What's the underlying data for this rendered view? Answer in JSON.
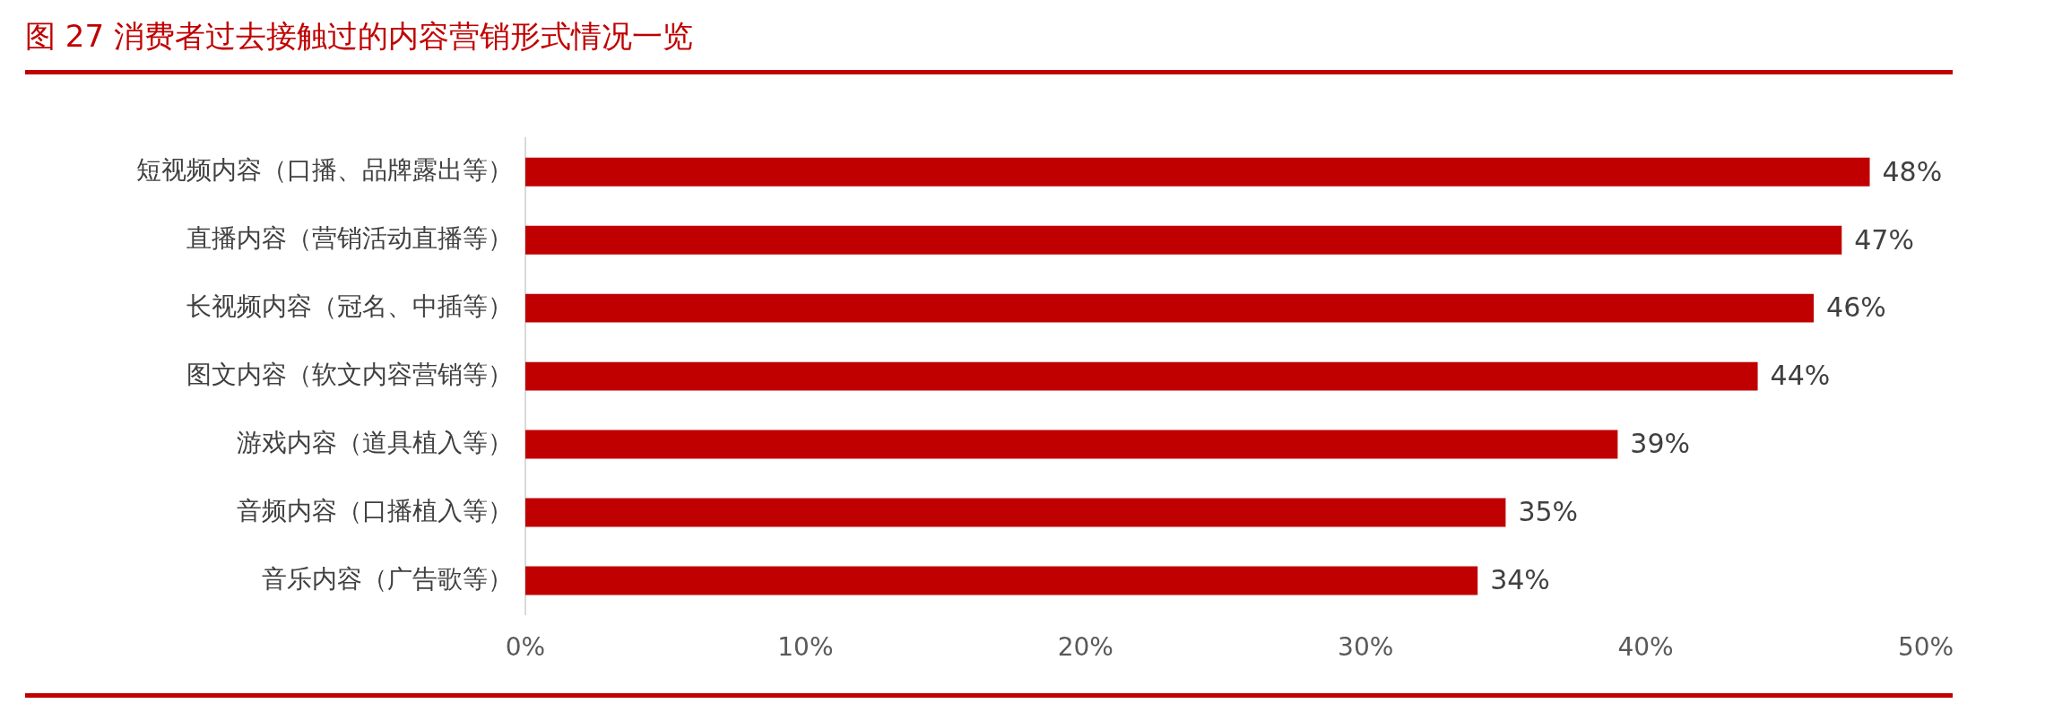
{
  "chart_data": {
    "type": "bar",
    "orientation": "horizontal",
    "title": "图 27  消费者过去接触过的内容营销形式情况一览",
    "categories": [
      "短视频内容（口播、品牌露出等）",
      "直播内容（营销活动直播等）",
      "长视频内容（冠名、中插等）",
      "图文内容（软文内容营销等）",
      "游戏内容（道具植入等）",
      "音频内容（口播植入等）",
      "音乐内容（广告歌等）"
    ],
    "values": [
      48,
      47,
      46,
      44,
      39,
      35,
      34
    ],
    "value_labels": [
      "48%",
      "47%",
      "46%",
      "44%",
      "39%",
      "35%",
      "34%"
    ],
    "color": "#c00000",
    "xlim": [
      0,
      50
    ],
    "xticks": [
      {
        "value": 0,
        "label": "0%"
      },
      {
        "value": 10,
        "label": "10%"
      },
      {
        "value": 20,
        "label": "20%"
      },
      {
        "value": 30,
        "label": "30%"
      },
      {
        "value": 40,
        "label": "40%"
      },
      {
        "value": 50,
        "label": "50%"
      }
    ],
    "grid": false,
    "legend": false
  }
}
